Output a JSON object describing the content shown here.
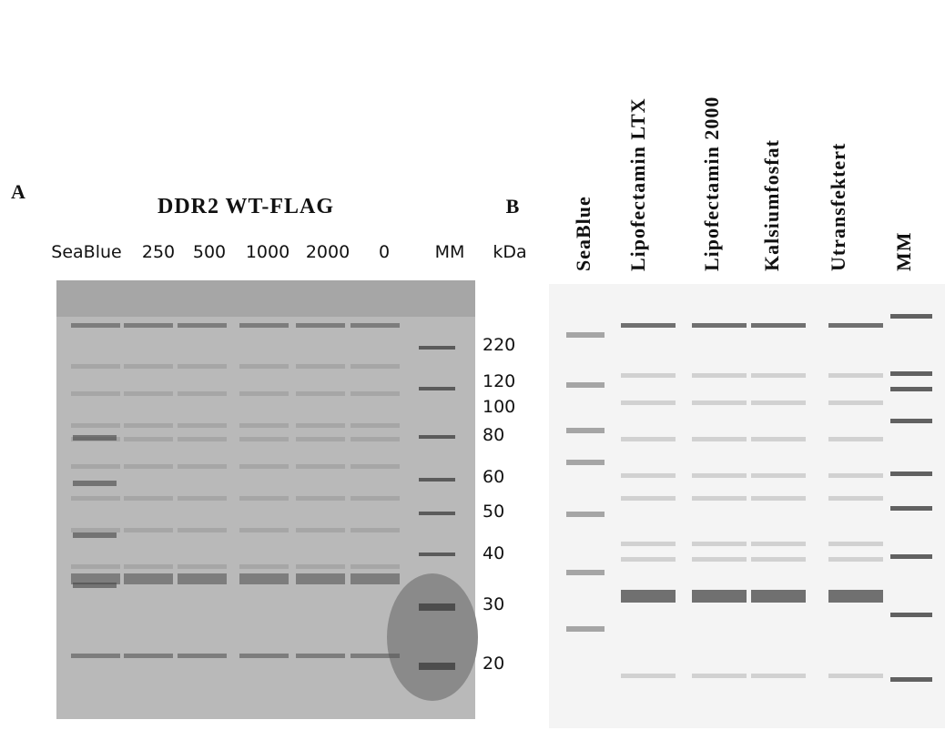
{
  "panel_a": {
    "label": "A",
    "title": "DDR2 WT-FLAG",
    "lanes": [
      "SeaBlue",
      "250",
      "500",
      "1000",
      "2000",
      "0",
      "MM"
    ],
    "unit": "kDa",
    "markers": [
      "220",
      "120",
      "100",
      "80",
      "60",
      "50",
      "40",
      "30",
      "20"
    ]
  },
  "panel_b": {
    "label": "B",
    "lanes": [
      "SeaBlue",
      "Lipofectamin LTX",
      "Lipofectamin 2000",
      "Kalsiumfosfat",
      "Utransfektert",
      "MM"
    ]
  }
}
